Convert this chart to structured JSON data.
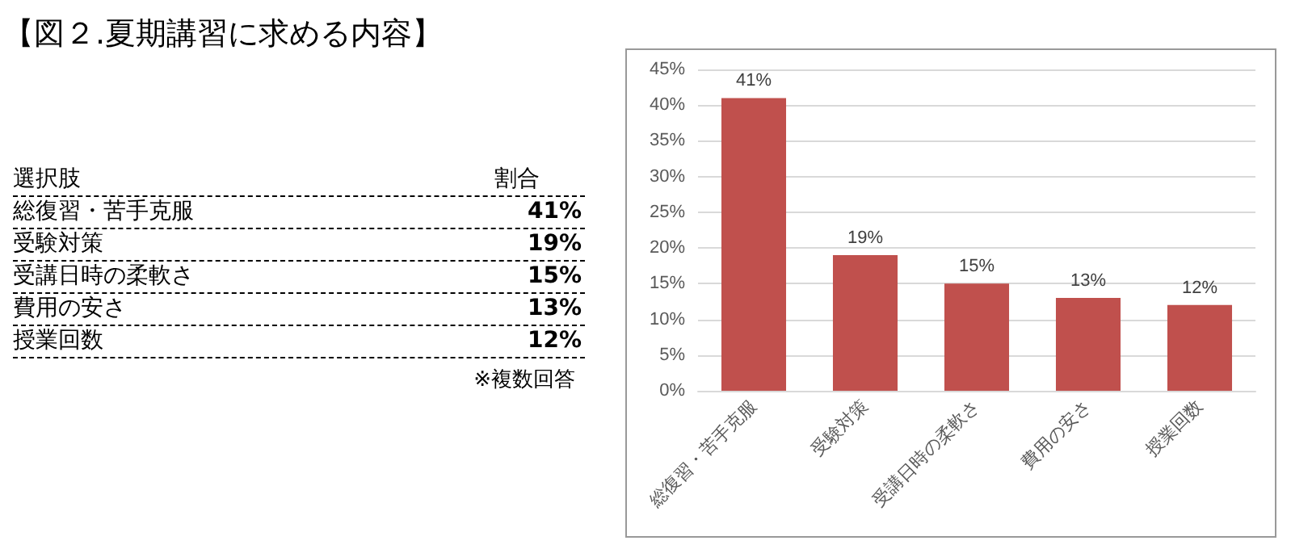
{
  "chart_data": {
    "type": "bar",
    "title": "【図２.夏期講習に求める内容】",
    "categories": [
      "総復習・苦手克服",
      "受験対策",
      "受講日時の柔軟さ",
      "費用の安さ",
      "授業回数"
    ],
    "values": [
      41,
      19,
      15,
      13,
      12
    ],
    "value_labels": [
      "41%",
      "19%",
      "15%",
      "13%",
      "12%"
    ],
    "color": "#c0504d",
    "ylim": [
      0,
      45
    ],
    "yticks": [
      {
        "value": 0,
        "label": "0%"
      },
      {
        "value": 5,
        "label": "5%"
      },
      {
        "value": 10,
        "label": "10%"
      },
      {
        "value": 15,
        "label": "15%"
      },
      {
        "value": 20,
        "label": "20%"
      },
      {
        "value": 25,
        "label": "25%"
      },
      {
        "value": 30,
        "label": "30%"
      },
      {
        "value": 35,
        "label": "35%"
      },
      {
        "value": 40,
        "label": "40%"
      },
      {
        "value": 45,
        "label": "45%"
      }
    ],
    "annotations": [
      "選択肢",
      "割合",
      "※複数回答"
    ],
    "grid": "y"
  }
}
